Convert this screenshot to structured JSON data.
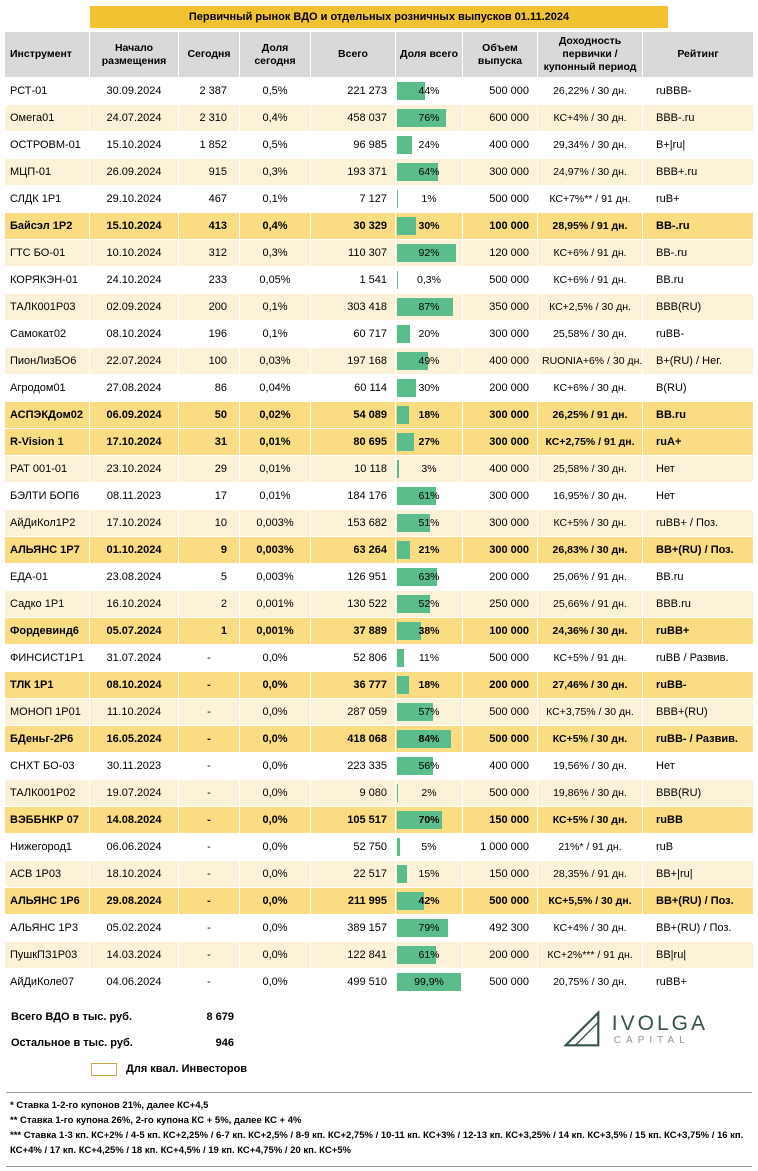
{
  "title": "Первичный рынок ВДО и отдельных розничных выпусков 01.11.2024",
  "columns": [
    "Инструмент",
    "Начало размещения",
    "Сегодня",
    "Доля сегодня",
    "Всего",
    "Доля всего",
    "Объем выпуска",
    "Доходность первички / купонный период",
    "Рейтинг"
  ],
  "rows": [
    {
      "name": "РСТ-01",
      "date": "30.09.2024",
      "today": "2 387",
      "sh_today": "0,5%",
      "total": "221 273",
      "pct": 44,
      "sh_total": "44%",
      "vol": "500 000",
      "yld": "26,22% / 30 дн.",
      "rating": "ruBBB-",
      "hl": false
    },
    {
      "name": "Омега01",
      "date": "24.07.2024",
      "today": "2 310",
      "sh_today": "0,4%",
      "total": "458 037",
      "pct": 76,
      "sh_total": "76%",
      "vol": "600 000",
      "yld": "КС+4% / 30 дн.",
      "rating": "BBB-.ru",
      "hl": false
    },
    {
      "name": "ОСТРОВМ-01",
      "date": "15.10.2024",
      "today": "1 852",
      "sh_today": "0,5%",
      "total": "96 985",
      "pct": 24,
      "sh_total": "24%",
      "vol": "400 000",
      "yld": "29,34% / 30 дн.",
      "rating": "B+|ru|",
      "hl": false
    },
    {
      "name": "МЦП-01",
      "date": "26.09.2024",
      "today": "915",
      "sh_today": "0,3%",
      "total": "193 371",
      "pct": 64,
      "sh_total": "64%",
      "vol": "300 000",
      "yld": "24,97% / 30 дн.",
      "rating": "BBB+.ru",
      "hl": false
    },
    {
      "name": "СЛДК 1Р1",
      "date": "29.10.2024",
      "today": "467",
      "sh_today": "0,1%",
      "total": "7 127",
      "pct": 1,
      "sh_total": "1%",
      "vol": "500 000",
      "yld": "КС+7%** / 91 дн.",
      "rating": "ruB+",
      "hl": false
    },
    {
      "name": "Байсэл 1Р2",
      "date": "15.10.2024",
      "today": "413",
      "sh_today": "0,4%",
      "total": "30 329",
      "pct": 30,
      "sh_total": "30%",
      "vol": "100 000",
      "yld": "28,95% / 91 дн.",
      "rating": "BB-.ru",
      "hl": true
    },
    {
      "name": "ГТС БО-01",
      "date": "10.10.2024",
      "today": "312",
      "sh_today": "0,3%",
      "total": "110 307",
      "pct": 92,
      "sh_total": "92%",
      "vol": "120 000",
      "yld": "КС+6% / 91 дн.",
      "rating": "BB-.ru",
      "hl": false
    },
    {
      "name": "КОРЯКЭН-01",
      "date": "24.10.2024",
      "today": "233",
      "sh_today": "0,05%",
      "total": "1 541",
      "pct": 0.3,
      "sh_total": "0,3%",
      "vol": "500 000",
      "yld": "КС+6% / 91 дн.",
      "rating": "BB.ru",
      "hl": false
    },
    {
      "name": "ТАЛК001Р03",
      "date": "02.09.2024",
      "today": "200",
      "sh_today": "0,1%",
      "total": "303 418",
      "pct": 87,
      "sh_total": "87%",
      "vol": "350 000",
      "yld": "КС+2,5% / 30 дн.",
      "rating": "BBB(RU)",
      "hl": false
    },
    {
      "name": "Самокат02",
      "date": "08.10.2024",
      "today": "196",
      "sh_today": "0,1%",
      "total": "60 717",
      "pct": 20,
      "sh_total": "20%",
      "vol": "300 000",
      "yld": "25,58% / 30 дн.",
      "rating": "ruBB-",
      "hl": false
    },
    {
      "name": "ПионЛизБО6",
      "date": "22.07.2024",
      "today": "100",
      "sh_today": "0,03%",
      "total": "197 168",
      "pct": 49,
      "sh_total": "49%",
      "vol": "400 000",
      "yld": "RUONIA+6% / 30 дн.",
      "rating": "B+(RU) / Нег.",
      "hl": false
    },
    {
      "name": "Агродом01",
      "date": "27.08.2024",
      "today": "86",
      "sh_today": "0,04%",
      "total": "60 114",
      "pct": 30,
      "sh_total": "30%",
      "vol": "200 000",
      "yld": "КС+6% / 30 дн.",
      "rating": "B(RU)",
      "hl": false
    },
    {
      "name": "АСПЭКДом02",
      "date": "06.09.2024",
      "today": "50",
      "sh_today": "0,02%",
      "total": "54 089",
      "pct": 18,
      "sh_total": "18%",
      "vol": "300 000",
      "yld": "26,25% / 91 дн.",
      "rating": "BB.ru",
      "hl": true
    },
    {
      "name": "R-Vision 1",
      "date": "17.10.2024",
      "today": "31",
      "sh_today": "0,01%",
      "total": "80 695",
      "pct": 27,
      "sh_total": "27%",
      "vol": "300 000",
      "yld": "КС+2,75% / 91 дн.",
      "rating": "ruA+",
      "hl": true
    },
    {
      "name": "РАТ 001-01",
      "date": "23.10.2024",
      "today": "29",
      "sh_today": "0,01%",
      "total": "10 118",
      "pct": 3,
      "sh_total": "3%",
      "vol": "400 000",
      "yld": "25,58% / 30 дн.",
      "rating": "Нет",
      "hl": false
    },
    {
      "name": "БЭЛТИ БОП6",
      "date": "08.11.2023",
      "today": "17",
      "sh_today": "0,01%",
      "total": "184 176",
      "pct": 61,
      "sh_total": "61%",
      "vol": "300 000",
      "yld": "16,95% / 30 дн.",
      "rating": "Нет",
      "hl": false
    },
    {
      "name": "АйДиКол1Р2",
      "date": "17.10.2024",
      "today": "10",
      "sh_today": "0,003%",
      "total": "153 682",
      "pct": 51,
      "sh_total": "51%",
      "vol": "300 000",
      "yld": "КС+5% / 30 дн.",
      "rating": "ruBB+ / Поз.",
      "hl": false
    },
    {
      "name": "АЛЬЯНС 1Р7",
      "date": "01.10.2024",
      "today": "9",
      "sh_today": "0,003%",
      "total": "63 264",
      "pct": 21,
      "sh_total": "21%",
      "vol": "300 000",
      "yld": "26,83% / 30 дн.",
      "rating": "BB+(RU) / Поз.",
      "hl": true
    },
    {
      "name": "ЕДА-01",
      "date": "23.08.2024",
      "today": "5",
      "sh_today": "0,003%",
      "total": "126 951",
      "pct": 63,
      "sh_total": "63%",
      "vol": "200 000",
      "yld": "25,06% / 91 дн.",
      "rating": "BB.ru",
      "hl": false
    },
    {
      "name": "Садко 1Р1",
      "date": "16.10.2024",
      "today": "2",
      "sh_today": "0,001%",
      "total": "130 522",
      "pct": 52,
      "sh_total": "52%",
      "vol": "250 000",
      "yld": "25,66% / 91 дн.",
      "rating": "BBB.ru",
      "hl": false
    },
    {
      "name": "Фордевинд6",
      "date": "05.07.2024",
      "today": "1",
      "sh_today": "0,001%",
      "total": "37 889",
      "pct": 38,
      "sh_total": "38%",
      "vol": "100 000",
      "yld": "24,36% / 30 дн.",
      "rating": "ruBB+",
      "hl": true
    },
    {
      "name": "ФИНСИСТ1Р1",
      "date": "31.07.2024",
      "today": "-",
      "sh_today": "0,0%",
      "total": "52 806",
      "pct": 11,
      "sh_total": "11%",
      "vol": "500 000",
      "yld": "КС+5% / 91 дн.",
      "rating": "ruBB / Развив.",
      "hl": false
    },
    {
      "name": "ТЛК 1Р1",
      "date": "08.10.2024",
      "today": "-",
      "sh_today": "0,0%",
      "total": "36 777",
      "pct": 18,
      "sh_total": "18%",
      "vol": "200 000",
      "yld": "27,46% / 30 дн.",
      "rating": "ruBB-",
      "hl": true
    },
    {
      "name": "МОНОП 1Р01",
      "date": "11.10.2024",
      "today": "-",
      "sh_today": "0,0%",
      "total": "287 059",
      "pct": 57,
      "sh_total": "57%",
      "vol": "500 000",
      "yld": "КС+3,75% / 30 дн.",
      "rating": "BBB+(RU)",
      "hl": false
    },
    {
      "name": "БДеньг-2Р6",
      "date": "16.05.2024",
      "today": "-",
      "sh_today": "0,0%",
      "total": "418 068",
      "pct": 84,
      "sh_total": "84%",
      "vol": "500 000",
      "yld": "КС+5% / 30 дн.",
      "rating": "ruBB- / Развив.",
      "hl": true
    },
    {
      "name": "СНХТ БО-03",
      "date": "30.11.2023",
      "today": "-",
      "sh_today": "0,0%",
      "total": "223 335",
      "pct": 56,
      "sh_total": "56%",
      "vol": "400 000",
      "yld": "19,56% / 30 дн.",
      "rating": "Нет",
      "hl": false
    },
    {
      "name": "ТАЛК001Р02",
      "date": "19.07.2024",
      "today": "-",
      "sh_today": "0,0%",
      "total": "9 080",
      "pct": 2,
      "sh_total": "2%",
      "vol": "500 000",
      "yld": "19,86% / 30 дн.",
      "rating": "BBB(RU)",
      "hl": false
    },
    {
      "name": "ВЭББНКР 07",
      "date": "14.08.2024",
      "today": "-",
      "sh_today": "0,0%",
      "total": "105 517",
      "pct": 70,
      "sh_total": "70%",
      "vol": "150 000",
      "yld": "КС+5% / 30 дн.",
      "rating": "ruBB",
      "hl": true
    },
    {
      "name": "Нижегород1",
      "date": "06.06.2024",
      "today": "-",
      "sh_today": "0,0%",
      "total": "52 750",
      "pct": 5,
      "sh_total": "5%",
      "vol": "1 000 000",
      "yld": "21%* / 91 дн.",
      "rating": "ruB",
      "hl": false
    },
    {
      "name": "АСВ 1Р03",
      "date": "18.10.2024",
      "today": "-",
      "sh_today": "0,0%",
      "total": "22 517",
      "pct": 15,
      "sh_total": "15%",
      "vol": "150 000",
      "yld": "28,35% / 91 дн.",
      "rating": "BB+|ru|",
      "hl": false
    },
    {
      "name": "АЛЬЯНС 1Р6",
      "date": "29.08.2024",
      "today": "-",
      "sh_today": "0,0%",
      "total": "211 995",
      "pct": 42,
      "sh_total": "42%",
      "vol": "500 000",
      "yld": "КС+5,5% / 30 дн.",
      "rating": "BB+(RU) / Поз.",
      "hl": true
    },
    {
      "name": "АЛЬЯНС 1Р3",
      "date": "05.02.2024",
      "today": "-",
      "sh_today": "0,0%",
      "total": "389 157",
      "pct": 79,
      "sh_total": "79%",
      "vol": "492 300",
      "yld": "КС+4% / 30 дн.",
      "rating": "BB+(RU) / Поз.",
      "hl": false
    },
    {
      "name": "ПушкПЗ1Р03",
      "date": "14.03.2024",
      "today": "-",
      "sh_today": "0,0%",
      "total": "122 841",
      "pct": 61,
      "sh_total": "61%",
      "vol": "200 000",
      "yld": "КС+2%*** / 91 дн.",
      "rating": "BB|ru|",
      "hl": false
    },
    {
      "name": "АйДиКоле07",
      "date": "04.06.2024",
      "today": "-",
      "sh_today": "0,0%",
      "total": "499 510",
      "pct": 99.9,
      "sh_total": "99,9%",
      "vol": "500 000",
      "yld": "20,75% / 30 дн.",
      "rating": "ruBB+",
      "hl": false
    }
  ],
  "footer": {
    "total_vdo_label": "Всего ВДО в тыс. руб.",
    "total_vdo_value": "8 679",
    "other_label": "Остальное в тыс. руб.",
    "other_value": "946",
    "legend_label": "Для квал. Инвесторов"
  },
  "footnotes": [
    "* Ставка 1-2-го купонов 21%, далее КС+4,5",
    "** Ставка 1-го купона 26%, 2-го купона КС + 5%, далее КС + 4%",
    "*** Ставка 1-3 кп. КС+2% / 4-5 кп. КС+2,25% / 6-7 кп. КС+2,5% / 8-9 кп. КС+2,75% / 10-11 кп. КС+3% / 12-13 кп. КС+3,25% / 14 кп. КС+3,5% / 15 кп. КС+3,75% / 16 кп. КС+4% / 17 кп. КС+4,25% / 18 кп. КС+4,5% / 19 кп. КС+4,75% / 20 кп. КС+5%"
  ],
  "logo": {
    "name": "IVOLGA",
    "sub": "CAPITAL"
  },
  "colors": {
    "title_bg": "#F1C232",
    "header_bg": "#D9D9D9",
    "row_cream": "#FBF2D7",
    "row_highlight": "#FADC82",
    "bar_green": "#5BBD8B",
    "logo_color": "#35514A"
  }
}
